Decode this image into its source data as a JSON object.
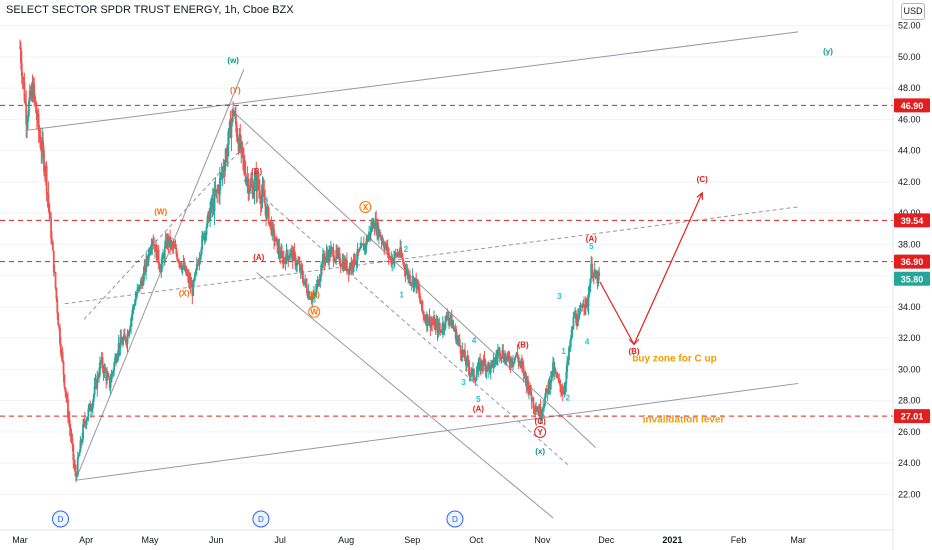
{
  "header": {
    "title": "SELECT SECTOR SPDR TRUST ENERGY, 1h, Cboe BZX",
    "currency": "USD"
  },
  "colors": {
    "up": "#26a69a",
    "down": "#ef5350",
    "wave_major": "#089981",
    "wave_orange": "#ff6d00",
    "wave_red": "#e21f1f",
    "wave_cyan": "#22c4d4",
    "note": "#f59b00",
    "price_tag": "#e21f1f",
    "last_tag": "#26a69a"
  },
  "chart_data": {
    "type": "candlestick",
    "symbol": "SELECT SECTOR SPDR TRUST ENERGY",
    "interval": "1h",
    "exchange": "Cboe BZX",
    "y_axis": {
      "ticks": [
        "52.00",
        "50.00",
        "48.00",
        "46.00",
        "44.00",
        "42.00",
        "40.00",
        "38.00",
        "36.00",
        "34.00",
        "32.00",
        "30.00",
        "28.00",
        "26.00",
        "24.00",
        "22.00"
      ],
      "range": [
        21,
        53
      ]
    },
    "x_axis": {
      "ticks": [
        "Mar",
        "Apr",
        "May",
        "Jun",
        "Jul",
        "Aug",
        "Sep",
        "Oct",
        "Nov",
        "Dec",
        "2021",
        "Feb",
        "Mar"
      ],
      "range": [
        "2020-03-01",
        "2021-03-15"
      ]
    },
    "price_path": [
      [
        "2020-03-01",
        50.6
      ],
      [
        "2020-03-04",
        46.2
      ],
      [
        "2020-03-07",
        48.0
      ],
      [
        "2020-03-10",
        45.0
      ],
      [
        "2020-03-13",
        42.8
      ],
      [
        "2020-03-16",
        38.0
      ],
      [
        "2020-03-19",
        33.0
      ],
      [
        "2020-03-22",
        29.0
      ],
      [
        "2020-03-25",
        25.5
      ],
      [
        "2020-03-27",
        23.0
      ],
      [
        "2020-03-31",
        26.5
      ],
      [
        "2020-04-04",
        28.0
      ],
      [
        "2020-04-08",
        30.5
      ],
      [
        "2020-04-12",
        29.0
      ],
      [
        "2020-04-16",
        31.5
      ],
      [
        "2020-04-20",
        32.0
      ],
      [
        "2020-04-24",
        34.5
      ],
      [
        "2020-04-28",
        36.0
      ],
      [
        "2020-05-02",
        38.5
      ],
      [
        "2020-05-06",
        36.5
      ],
      [
        "2020-05-09",
        38.3
      ],
      [
        "2020-05-13",
        37.5
      ],
      [
        "2020-05-17",
        36.4
      ],
      [
        "2020-05-21",
        35.0
      ],
      [
        "2020-05-25",
        38.0
      ],
      [
        "2020-05-29",
        40.0
      ],
      [
        "2020-06-02",
        41.5
      ],
      [
        "2020-06-06",
        44.0
      ],
      [
        "2020-06-09",
        46.6
      ],
      [
        "2020-06-11",
        45.0
      ],
      [
        "2020-06-14",
        43.0
      ],
      [
        "2020-06-17",
        41.5
      ],
      [
        "2020-06-20",
        42.0
      ],
      [
        "2020-06-24",
        40.5
      ],
      [
        "2020-06-28",
        38.5
      ],
      [
        "2020-07-02",
        37.0
      ],
      [
        "2020-07-06",
        37.5
      ],
      [
        "2020-07-10",
        36.5
      ],
      [
        "2020-07-14",
        35.0
      ],
      [
        "2020-07-17",
        34.5
      ],
      [
        "2020-07-21",
        37.0
      ],
      [
        "2020-07-25",
        37.5
      ],
      [
        "2020-07-29",
        37.0
      ],
      [
        "2020-08-02",
        36.5
      ],
      [
        "2020-08-06",
        37.2
      ],
      [
        "2020-08-10",
        38.0
      ],
      [
        "2020-08-14",
        39.5
      ],
      [
        "2020-08-18",
        38.3
      ],
      [
        "2020-08-22",
        37.0
      ],
      [
        "2020-08-26",
        37.5
      ],
      [
        "2020-08-30",
        36.0
      ],
      [
        "2020-09-03",
        35.5
      ],
      [
        "2020-09-06",
        33.5
      ],
      [
        "2020-09-10",
        33.0
      ],
      [
        "2020-09-14",
        32.5
      ],
      [
        "2020-09-18",
        33.5
      ],
      [
        "2020-09-22",
        32.0
      ],
      [
        "2020-09-26",
        30.5
      ],
      [
        "2020-09-30",
        29.5
      ],
      [
        "2020-10-04",
        30.5
      ],
      [
        "2020-10-08",
        30.0
      ],
      [
        "2020-10-12",
        31.3
      ],
      [
        "2020-10-16",
        30.5
      ],
      [
        "2020-10-20",
        30.9
      ],
      [
        "2020-10-24",
        29.5
      ],
      [
        "2020-10-28",
        27.8
      ],
      [
        "2020-10-31",
        27.2
      ],
      [
        "2020-11-03",
        28.5
      ],
      [
        "2020-11-06",
        30.0
      ],
      [
        "2020-11-09",
        29.0
      ],
      [
        "2020-11-11",
        28.6
      ],
      [
        "2020-11-13",
        30.5
      ],
      [
        "2020-11-16",
        33.5
      ],
      [
        "2020-11-18",
        33.0
      ],
      [
        "2020-11-20",
        34.5
      ],
      [
        "2020-11-22",
        34.0
      ],
      [
        "2020-11-24",
        36.5
      ],
      [
        "2020-11-26",
        35.8
      ],
      [
        "2020-11-28",
        35.8
      ]
    ],
    "horizontal_levels": [
      {
        "price": "46.90",
        "color": "#e21f1f"
      },
      {
        "price": "39.54",
        "color": "#e21f1f"
      },
      {
        "price": "36.90",
        "color": "#e21f1f"
      },
      {
        "price": "27.01",
        "color": "#e21f1f"
      }
    ],
    "last_price": "35.80",
    "projection": [
      [
        "2020-11-28",
        35.6
      ],
      [
        "2020-12-14",
        31.6
      ],
      [
        "2021-01-15",
        41.3
      ]
    ],
    "wave_labels": [
      {
        "text": "(w)",
        "date": "2020-06-09",
        "price": 49.6,
        "color": "#089981",
        "size": "big"
      },
      {
        "text": "(x)",
        "date": "2020-10-31",
        "price": 24.6,
        "color": "#089981",
        "size": "big"
      },
      {
        "text": "(y)",
        "date": "2021-03-15",
        "price": 50.2,
        "color": "#089981",
        "size": "big"
      },
      {
        "text": "(Y)",
        "date": "2020-06-10",
        "price": 47.7,
        "color": "#ff6d00"
      },
      {
        "text": "(W)",
        "date": "2020-05-06",
        "price": 39.9,
        "color": "#ff6d00"
      },
      {
        "text": "(X)",
        "date": "2020-05-17",
        "price": 34.7,
        "color": "#ff6d00"
      },
      {
        "text": "X",
        "date": "2020-08-10",
        "price": 40.2,
        "color": "#ff6d00",
        "circle": true
      },
      {
        "text": "(C)",
        "date": "2020-07-17",
        "price": 34.6,
        "color": "#ff6d00"
      },
      {
        "text": "W",
        "date": "2020-07-17",
        "price": 33.5,
        "color": "#ff6d00",
        "circle": true
      },
      {
        "text": "(B)",
        "date": "2020-06-20",
        "price": 42.5,
        "color": "#e21f1f"
      },
      {
        "text": "(A)",
        "date": "2020-06-21",
        "price": 37.0,
        "color": "#e21f1f"
      },
      {
        "text": "(B)",
        "date": "2020-10-23",
        "price": 31.4,
        "color": "#e21f1f"
      },
      {
        "text": "(A)",
        "date": "2020-10-02",
        "price": 27.3,
        "color": "#e21f1f"
      },
      {
        "text": "(C)",
        "date": "2020-10-31",
        "price": 26.5,
        "color": "#e21f1f"
      },
      {
        "text": "Y",
        "date": "2020-10-31",
        "price": 25.8,
        "color": "#e21f1f",
        "circle": true
      },
      {
        "text": "(A)",
        "date": "2020-11-24",
        "price": 38.2,
        "color": "#e21f1f"
      },
      {
        "text": "(B)",
        "date": "2020-12-14",
        "price": 31.0,
        "color": "#e21f1f"
      },
      {
        "text": "(C)",
        "date": "2021-01-15",
        "price": 42.0,
        "color": "#e21f1f"
      },
      {
        "text": "2",
        "date": "2020-08-29",
        "price": 37.5,
        "color": "#22c4d4"
      },
      {
        "text": "1",
        "date": "2020-08-27",
        "price": 34.6,
        "color": "#22c4d4"
      },
      {
        "text": "4",
        "date": "2020-09-30",
        "price": 31.7,
        "color": "#22c4d4"
      },
      {
        "text": "3",
        "date": "2020-09-25",
        "price": 29.0,
        "color": "#22c4d4"
      },
      {
        "text": "5",
        "date": "2020-10-02",
        "price": 27.9,
        "color": "#22c4d4"
      },
      {
        "text": "1",
        "date": "2020-11-11",
        "price": 31.0,
        "color": "#22c4d4"
      },
      {
        "text": "2",
        "date": "2020-11-13",
        "price": 28.0,
        "color": "#22c4d4"
      },
      {
        "text": "3",
        "date": "2020-11-09",
        "price": 34.5,
        "color": "#22c4d4"
      },
      {
        "text": "4",
        "date": "2020-11-22",
        "price": 31.6,
        "color": "#22c4d4"
      },
      {
        "text": "5",
        "date": "2020-11-24",
        "price": 37.7,
        "color": "#22c4d4"
      }
    ],
    "annotations": [
      {
        "text": "buy zone for C up",
        "date": "2021-01-02",
        "price": 30.5
      },
      {
        "text": "invalidation level",
        "date": "2021-01-06",
        "price": 26.6
      }
    ],
    "dividend_markers": [
      {
        "text": "D",
        "date": "2020-03-20"
      },
      {
        "text": "D",
        "date": "2020-06-22"
      },
      {
        "text": "D",
        "date": "2020-09-21"
      }
    ]
  }
}
